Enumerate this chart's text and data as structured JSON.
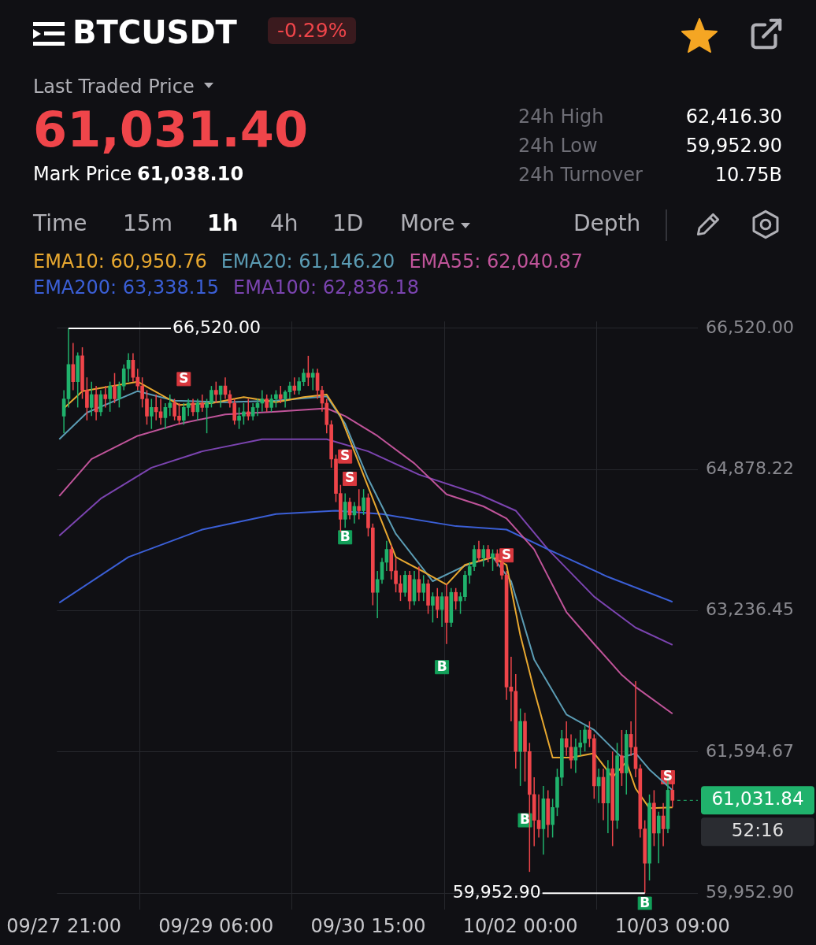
{
  "chart_data": {
    "type": "candlestick",
    "title": "BTCUSDT",
    "annotations": [
      "-0.29%",
      "Last Traded Price",
      "61,031.40",
      "Mark Price",
      "61,038.10",
      "24h High",
      "62,416.30",
      "24h Low",
      "59,952.90",
      "24h Turnover",
      "10.75B",
      "Time",
      "15m",
      "1h",
      "4h",
      "1D",
      "More",
      "Depth",
      "52:16",
      {
        "text": "66,520.00",
        "x": "--09-27T22:00",
        "y": 66520
      },
      {
        "text": "59,952.90",
        "x": "--10-03T03:00",
        "y": 59952.9
      }
    ],
    "xlim": [
      "--09-27T19:30",
      "--10-03T14:30"
    ],
    "xticks": [
      {
        "value": "--09-27T21:00",
        "label": "09/27 21:00"
      },
      {
        "value": "--09-29T06:00",
        "label": "09/29 06:00"
      },
      {
        "value": "--09-30T15:00",
        "label": "09/30 15:00"
      },
      {
        "value": "--10-02T00:00",
        "label": "10/02 00:00"
      },
      {
        "value": "--10-03T09:00",
        "label": "10/03 09:00"
      }
    ],
    "ylim": [
      59760,
      66600
    ],
    "yticks": [
      {
        "value": 59952.9,
        "label": "59,952.90"
      },
      {
        "value": 61594.67,
        "label": "61,594.67"
      },
      {
        "value": 63236.45,
        "label": "63,236.45"
      },
      {
        "value": 64878.22,
        "label": "64,878.22"
      },
      {
        "value": 66520,
        "label": "66,520.00"
      }
    ],
    "grid": true,
    "legend": "top",
    "ref_lines": [
      {
        "axis": "y",
        "value": 61031.84,
        "label": "61,031.84",
        "color": "#20b26c",
        "line_style": "dashed"
      }
    ],
    "series": [
      {
        "x": [
          "--09-27T21:00",
          "--09-27T22:00",
          "--09-27T23:00",
          "--09-28T00:00",
          "--09-28T01:00",
          "--09-28T02:00",
          "--09-28T03:00",
          "--09-28T04:00",
          "--09-28T05:00",
          "--09-28T06:00",
          "--09-28T07:00",
          "--09-28T08:00",
          "--09-28T09:00",
          "--09-28T10:00",
          "--09-28T11:00",
          "--09-28T12:00",
          "--09-28T13:00",
          "--09-28T14:00",
          "--09-28T15:00",
          "--09-28T16:00",
          "--09-28T17:00",
          "--09-28T18:00",
          "--09-28T19:00",
          "--09-28T20:00",
          "--09-28T21:00",
          "--09-28T22:00",
          "--09-28T23:00",
          "--09-29T00:00",
          "--09-29T01:00",
          "--09-29T02:00",
          "--09-29T03:00",
          "--09-29T04:00",
          "--09-29T05:00",
          "--09-29T06:00",
          "--09-29T07:00",
          "--09-29T08:00",
          "--09-29T09:00",
          "--09-29T10:00",
          "--09-29T11:00",
          "--09-29T12:00",
          "--09-29T13:00",
          "--09-29T14:00",
          "--09-29T15:00",
          "--09-29T16:00",
          "--09-29T17:00",
          "--09-29T18:00",
          "--09-29T19:00",
          "--09-29T20:00",
          "--09-29T21:00",
          "--09-29T22:00",
          "--09-29T23:00",
          "--09-30T00:00",
          "--09-30T01:00",
          "--09-30T02:00",
          "--09-30T03:00",
          "--09-30T04:00",
          "--09-30T05:00",
          "--09-30T06:00",
          "--09-30T07:00",
          "--09-30T08:00",
          "--09-30T09:00",
          "--09-30T10:00",
          "--09-30T11:00",
          "--09-30T12:00",
          "--09-30T13:00",
          "--09-30T14:00",
          "--09-30T15:00",
          "--09-30T16:00",
          "--09-30T17:00",
          "--09-30T18:00",
          "--09-30T19:00",
          "--09-30T20:00",
          "--09-30T21:00",
          "--09-30T22:00",
          "--09-30T23:00",
          "--10-01T00:00",
          "--10-01T01:00",
          "--10-01T02:00",
          "--10-01T03:00",
          "--10-01T04:00",
          "--10-01T05:00",
          "--10-01T06:00",
          "--10-01T07:00",
          "--10-01T08:00",
          "--10-01T09:00",
          "--10-01T10:00",
          "--10-01T11:00",
          "--10-01T12:00",
          "--10-01T13:00",
          "--10-01T14:00",
          "--10-01T15:00",
          "--10-01T16:00",
          "--10-01T17:00",
          "--10-01T18:00",
          "--10-01T19:00",
          "--10-01T20:00",
          "--10-01T21:00",
          "--10-01T22:00",
          "--10-01T23:00",
          "--10-02T00:00",
          "--10-02T01:00",
          "--10-02T02:00",
          "--10-02T03:00",
          "--10-02T04:00",
          "--10-02T05:00",
          "--10-02T06:00",
          "--10-02T07:00",
          "--10-02T08:00",
          "--10-02T09:00",
          "--10-02T10:00",
          "--10-02T11:00",
          "--10-02T12:00",
          "--10-02T13:00",
          "--10-02T14:00",
          "--10-02T15:00",
          "--10-02T16:00",
          "--10-02T17:00",
          "--10-02T18:00",
          "--10-02T19:00",
          "--10-02T20:00",
          "--10-02T21:00",
          "--10-02T22:00",
          "--10-02T23:00",
          "--10-03T00:00",
          "--10-03T01:00",
          "--10-03T02:00",
          "--10-03T03:00",
          "--10-03T04:00",
          "--10-03T05:00",
          "--10-03T06:00",
          "--10-03T07:00",
          "--10-03T08:00",
          "--10-03T09:00"
        ],
        "ohlc": [
          [
            65500,
            65800,
            65300,
            65700
          ],
          [
            65700,
            66520,
            65600,
            66100
          ],
          [
            66100,
            66350,
            65800,
            65900
          ],
          [
            65900,
            66240,
            65600,
            66200
          ],
          [
            66200,
            66300,
            65700,
            65800
          ],
          [
            65800,
            65950,
            65450,
            65600
          ],
          [
            65600,
            65900,
            65500,
            65750
          ],
          [
            65750,
            65850,
            65450,
            65550
          ],
          [
            65550,
            65800,
            65500,
            65750
          ],
          [
            65750,
            65850,
            65600,
            65700
          ],
          [
            65700,
            65900,
            65550,
            65850
          ],
          [
            65850,
            66000,
            65650,
            65700
          ],
          [
            65700,
            65900,
            65600,
            65850
          ],
          [
            65850,
            66100,
            65800,
            66050
          ],
          [
            66050,
            66230,
            65900,
            66150
          ],
          [
            66150,
            66230,
            65900,
            65950
          ],
          [
            65950,
            66050,
            65800,
            65850
          ],
          [
            65850,
            65950,
            65600,
            65700
          ],
          [
            65700,
            65800,
            65400,
            65500
          ],
          [
            65500,
            65700,
            65350,
            65600
          ],
          [
            65600,
            65750,
            65450,
            65550
          ],
          [
            65550,
            65700,
            65400,
            65480
          ],
          [
            65480,
            65650,
            65350,
            65600
          ],
          [
            65600,
            65750,
            65500,
            65650
          ],
          [
            65650,
            65700,
            65450,
            65500
          ],
          [
            65500,
            65650,
            65400,
            65450
          ],
          [
            65450,
            65650,
            65400,
            65600
          ],
          [
            65600,
            65700,
            65500,
            65650
          ],
          [
            65650,
            65700,
            65500,
            65550
          ],
          [
            65550,
            65700,
            65450,
            65650
          ],
          [
            65650,
            65750,
            65550,
            65600
          ],
          [
            65600,
            65700,
            65300,
            65650
          ],
          [
            65650,
            65850,
            65600,
            65800
          ],
          [
            65800,
            65900,
            65650,
            65750
          ],
          [
            65750,
            65850,
            65600,
            65850
          ],
          [
            65850,
            65950,
            65700,
            65750
          ],
          [
            65750,
            65800,
            65600,
            65650
          ],
          [
            65650,
            65700,
            65400,
            65450
          ],
          [
            65450,
            65600,
            65350,
            65500
          ],
          [
            65500,
            65650,
            65400,
            65550
          ],
          [
            65550,
            65700,
            65450,
            65500
          ],
          [
            65500,
            65650,
            65450,
            65600
          ],
          [
            65600,
            65700,
            65500,
            65650
          ],
          [
            65650,
            65800,
            65550,
            65700
          ],
          [
            65700,
            65750,
            65550,
            65600
          ],
          [
            65600,
            65750,
            65550,
            65700
          ],
          [
            65700,
            65800,
            65600,
            65750
          ],
          [
            65750,
            65850,
            65650,
            65700
          ],
          [
            65700,
            65800,
            65600,
            65780
          ],
          [
            65780,
            65900,
            65700,
            65850
          ],
          [
            65850,
            65950,
            65750,
            65800
          ],
          [
            65800,
            65950,
            65750,
            65900
          ],
          [
            65900,
            66050,
            65850,
            66000
          ],
          [
            66000,
            66200,
            65850,
            65950
          ],
          [
            65950,
            66050,
            65800,
            66000
          ],
          [
            66000,
            66050,
            65700,
            65800
          ],
          [
            65800,
            65850,
            65550,
            65650
          ],
          [
            65650,
            65700,
            65300,
            65400
          ],
          [
            65400,
            65450,
            64900,
            65000
          ],
          [
            65000,
            65050,
            64500,
            64600
          ],
          [
            64600,
            64700,
            64150,
            64300
          ],
          [
            64300,
            64600,
            64200,
            64500
          ],
          [
            64500,
            64550,
            64300,
            64350
          ],
          [
            64350,
            64500,
            64250,
            64450
          ],
          [
            64450,
            64650,
            64300,
            64400
          ],
          [
            64400,
            64650,
            64350,
            64550
          ],
          [
            64550,
            64600,
            64100,
            64200
          ],
          [
            64200,
            64250,
            63300,
            63450
          ],
          [
            63450,
            63700,
            63150,
            63600
          ],
          [
            63600,
            63850,
            63550,
            63800
          ],
          [
            63800,
            64050,
            63700,
            63950
          ],
          [
            63950,
            64000,
            63600,
            63700
          ],
          [
            63700,
            63850,
            63450,
            63550
          ],
          [
            63550,
            63650,
            63350,
            63450
          ],
          [
            63450,
            63700,
            63400,
            63650
          ],
          [
            63650,
            63700,
            63250,
            63350
          ],
          [
            63350,
            63700,
            63300,
            63600
          ],
          [
            63600,
            63750,
            63350,
            63450
          ],
          [
            63450,
            63650,
            63350,
            63550
          ],
          [
            63550,
            63600,
            63200,
            63300
          ],
          [
            63300,
            63450,
            63100,
            63400
          ],
          [
            63400,
            63500,
            63150,
            63250
          ],
          [
            63250,
            63450,
            63050,
            63400
          ],
          [
            63400,
            63550,
            62850,
            63100
          ],
          [
            63100,
            63500,
            63050,
            63450
          ],
          [
            63450,
            63500,
            63250,
            63350
          ],
          [
            63350,
            63450,
            63200,
            63400
          ],
          [
            63400,
            63700,
            63350,
            63650
          ],
          [
            63650,
            63800,
            63550,
            63750
          ],
          [
            63750,
            64000,
            63700,
            63950
          ],
          [
            63950,
            64050,
            63800,
            63850
          ],
          [
            63850,
            64000,
            63750,
            63950
          ],
          [
            63950,
            64000,
            63800,
            63850
          ],
          [
            63850,
            63950,
            63700,
            63900
          ],
          [
            63900,
            63950,
            63750,
            63800
          ],
          [
            63800,
            63850,
            63600,
            63650
          ],
          [
            63650,
            63700,
            62200,
            62350
          ],
          [
            62350,
            62700,
            61950,
            62300
          ],
          [
            62300,
            62500,
            61400,
            61600
          ],
          [
            61600,
            62100,
            61200,
            61950
          ],
          [
            61950,
            62050,
            61250,
            61600
          ],
          [
            61600,
            61700,
            60200,
            61100
          ],
          [
            61100,
            61300,
            60500,
            60800
          ],
          [
            60800,
            61100,
            60600,
            60700
          ],
          [
            60700,
            61200,
            60400,
            61050
          ],
          [
            61050,
            61150,
            60600,
            60750
          ],
          [
            60750,
            61050,
            60600,
            60950
          ],
          [
            60950,
            61400,
            60850,
            61300
          ],
          [
            61300,
            61850,
            61200,
            61750
          ],
          [
            61750,
            61950,
            61550,
            61650
          ],
          [
            61650,
            61800,
            61400,
            61500
          ],
          [
            61500,
            61750,
            61350,
            61650
          ],
          [
            61650,
            61850,
            61550,
            61700
          ],
          [
            61700,
            61900,
            61600,
            61850
          ],
          [
            61850,
            61950,
            61650,
            61750
          ],
          [
            61750,
            61800,
            61050,
            61200
          ],
          [
            61200,
            61400,
            61000,
            61300
          ],
          [
            61300,
            61400,
            60800,
            61000
          ],
          [
            61000,
            61500,
            60650,
            61400
          ],
          [
            61400,
            61600,
            60500,
            60800
          ],
          [
            60800,
            61700,
            60700,
            61550
          ],
          [
            61550,
            61850,
            61200,
            61350
          ],
          [
            61350,
            61850,
            61100,
            61800
          ],
          [
            61800,
            61950,
            61550,
            61650
          ],
          [
            61650,
            62416.3,
            61300,
            61400
          ],
          [
            61400,
            61450,
            60600,
            60700
          ],
          [
            60700,
            60800,
            59952.9,
            60300
          ],
          [
            60300,
            61100,
            60100,
            61000
          ],
          [
            61000,
            61150,
            60500,
            60650
          ],
          [
            60650,
            60900,
            60300,
            60850
          ],
          [
            60850,
            61000,
            60500,
            60700
          ],
          [
            60700,
            61300,
            60650,
            61150
          ],
          [
            61150,
            61250,
            60950,
            61031.84
          ]
        ]
      },
      {
        "type": "line",
        "name": "EMA10: 60,950.76",
        "color": "#e8a830",
        "x": [
          "--09-27T21:00",
          "--09-28T01:00",
          "--09-28T13:00",
          "--09-28T22:00",
          "--09-29T05:00",
          "--09-29T12:00",
          "--09-29T19:00",
          "--09-30T01:00",
          "--09-30T06:00",
          "--09-30T09:00",
          "--09-30T13:00",
          "--09-30T17:00",
          "--09-30T21:00",
          "--10-01T03:00",
          "--10-01T08:00",
          "--10-01T12:00",
          "--10-01T18:00",
          "--10-01T21:00",
          "--10-02T00:00",
          "--10-02T03:00",
          "--10-02T07:00",
          "--10-02T11:00",
          "--10-02T16:00",
          "--10-02T20:00",
          "--10-02T23:00",
          "--10-03T01:00",
          "--10-03T04:00",
          "--10-03T09:00"
        ],
        "values": [
          65590,
          65790,
          65900,
          65630,
          65650,
          65720,
          65660,
          65720,
          65750,
          65500,
          64950,
          64400,
          63860,
          63690,
          63540,
          63770,
          63860,
          63770,
          62950,
          62310,
          61530,
          61530,
          61580,
          61300,
          61480,
          61170,
          60940,
          60950
        ]
      },
      {
        "type": "line",
        "name": "EMA20: 61,146.20",
        "color": "#5b9cb4",
        "x": [
          "--09-27T20:00",
          "--09-28T02:00",
          "--09-28T13:00",
          "--09-28T21:00",
          "--09-29T08:00",
          "--09-29T19:00",
          "--09-30T06:00",
          "--09-30T10:00",
          "--09-30T15:00",
          "--09-30T21:00",
          "--10-01T05:00",
          "--10-01T12:00",
          "--10-01T18:00",
          "--10-01T22:00",
          "--10-02T03:00",
          "--10-02T10:00",
          "--10-02T16:00",
          "--10-02T22:00",
          "--10-03T01:00",
          "--10-03T04:00",
          "--10-03T09:00"
        ],
        "values": [
          65230,
          65540,
          65790,
          65680,
          65660,
          65680,
          65730,
          65410,
          64770,
          64130,
          63580,
          63760,
          63860,
          63580,
          62670,
          62030,
          61850,
          61530,
          61580,
          61390,
          61150
        ]
      },
      {
        "type": "line",
        "name": "EMA55: 62,040.87",
        "color": "#c0549a",
        "x": [
          "--09-27T20:00",
          "--09-28T03:00",
          "--09-28T13:00",
          "--09-28T22:00",
          "--09-29T08:00",
          "--09-29T19:00",
          "--09-30T06:00",
          "--09-30T10:00",
          "--09-30T17:00",
          "--10-01T01:00",
          "--10-01T08:00",
          "--10-01T16:00",
          "--10-01T21:00",
          "--10-02T03:00",
          "--10-02T10:00",
          "--10-02T16:00",
          "--10-02T22:00",
          "--10-03T01:00",
          "--10-03T09:00"
        ],
        "values": [
          64570,
          65000,
          65270,
          65410,
          65520,
          65550,
          65590,
          65500,
          65270,
          64950,
          64590,
          64450,
          64310,
          63950,
          63220,
          62850,
          62490,
          62350,
          62040
        ]
      },
      {
        "type": "line",
        "name": "EMA200: 63,338.15",
        "color": "#3b5fd6",
        "x": [
          "--09-27T20:00",
          "--09-28T11:00",
          "--09-29T03:00",
          "--09-29T19:00",
          "--09-30T08:00",
          "--09-30T18:00",
          "--10-01T10:00",
          "--10-01T21:00",
          "--10-02T06:00",
          "--10-02T19:00",
          "--10-03T09:00"
        ],
        "values": [
          63330,
          63860,
          64180,
          64360,
          64400,
          64360,
          64220,
          64180,
          63950,
          63630,
          63340
        ]
      },
      {
        "type": "line",
        "name": "EMA100: 62,836.18",
        "color": "#7b44b0",
        "x": [
          "--09-27T20:00",
          "--09-28T05:00",
          "--09-28T16:00",
          "--09-29T03:00",
          "--09-29T16:00",
          "--09-30T06:00",
          "--09-30T15:00",
          "--10-01T02:00",
          "--10-01T15:00",
          "--10-01T23:00",
          "--10-02T06:00",
          "--10-02T16:00",
          "--10-03T01:00",
          "--10-03T09:00"
        ],
        "values": [
          64110,
          64540,
          64900,
          65090,
          65230,
          65230,
          65090,
          64820,
          64590,
          64400,
          63950,
          63400,
          63040,
          62840
        ]
      },
      {
        "type": "scatter",
        "color": "#d9383e",
        "marker": "square",
        "x": [
          "--09-28T23:00",
          "--09-30T10:00",
          "--09-30T11:00",
          "--10-01T21:00",
          "--10-03T08:00"
        ],
        "values": [
          65930,
          65030,
          64770,
          63880,
          61300
        ],
        "value_labels": [
          "S",
          "S",
          "S",
          "S",
          "S"
        ]
      },
      {
        "type": "scatter",
        "color": "#13a05a",
        "marker": "square",
        "x": [
          "--09-30T10:00",
          "--10-01T07:00",
          "--10-02T01:00",
          "--10-03T03:00"
        ],
        "values": [
          64090,
          62580,
          60800,
          59830
        ],
        "value_labels": [
          "B",
          "B",
          "B",
          "B"
        ]
      }
    ]
  }
}
